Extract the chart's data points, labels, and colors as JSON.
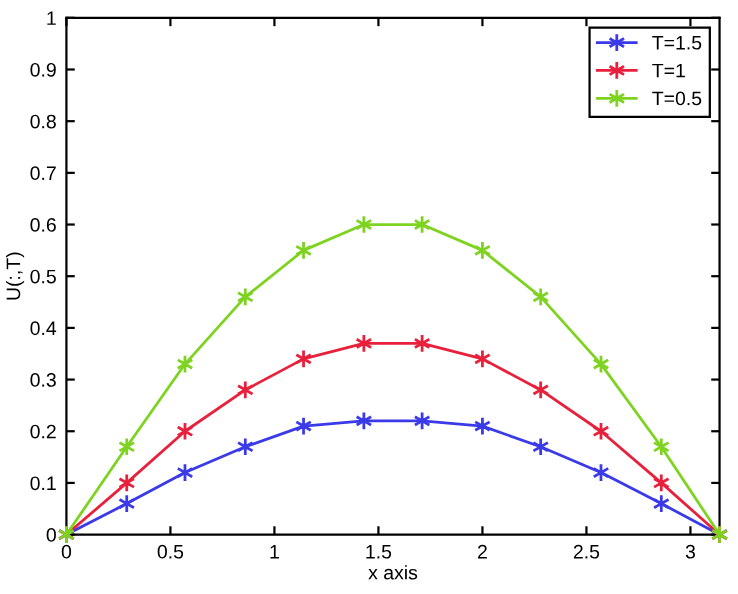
{
  "chart_data": {
    "type": "line",
    "xlabel": "x axis",
    "ylabel": "U(:,T)",
    "x": [
      0,
      0.29,
      0.57,
      0.86,
      1.14,
      1.43,
      1.71,
      2.0,
      2.28,
      2.57,
      2.86,
      3.14
    ],
    "series": [
      {
        "name": "T=1.5",
        "color": "#3a3ae8",
        "values": [
          0,
          0.06,
          0.12,
          0.17,
          0.21,
          0.22,
          0.22,
          0.21,
          0.17,
          0.12,
          0.06,
          0
        ]
      },
      {
        "name": "T=1",
        "color": "#e8203c",
        "values": [
          0,
          0.1,
          0.2,
          0.28,
          0.34,
          0.37,
          0.37,
          0.34,
          0.28,
          0.2,
          0.1,
          0
        ]
      },
      {
        "name": "T=0.5",
        "color": "#7ed321",
        "values": [
          0,
          0.17,
          0.33,
          0.46,
          0.55,
          0.6,
          0.6,
          0.55,
          0.46,
          0.33,
          0.17,
          0
        ]
      }
    ],
    "xlim": [
      0,
      3.14
    ],
    "xticks": [
      0,
      0.5,
      1,
      1.5,
      2,
      2.5,
      3
    ],
    "ylim": [
      0,
      1
    ],
    "yticks": [
      0,
      0.1,
      0.2,
      0.3,
      0.4,
      0.5,
      0.6,
      0.7,
      0.8,
      0.9,
      1
    ],
    "marker": "cross",
    "line_style": "solid",
    "legend": "top right",
    "grid": false
  }
}
